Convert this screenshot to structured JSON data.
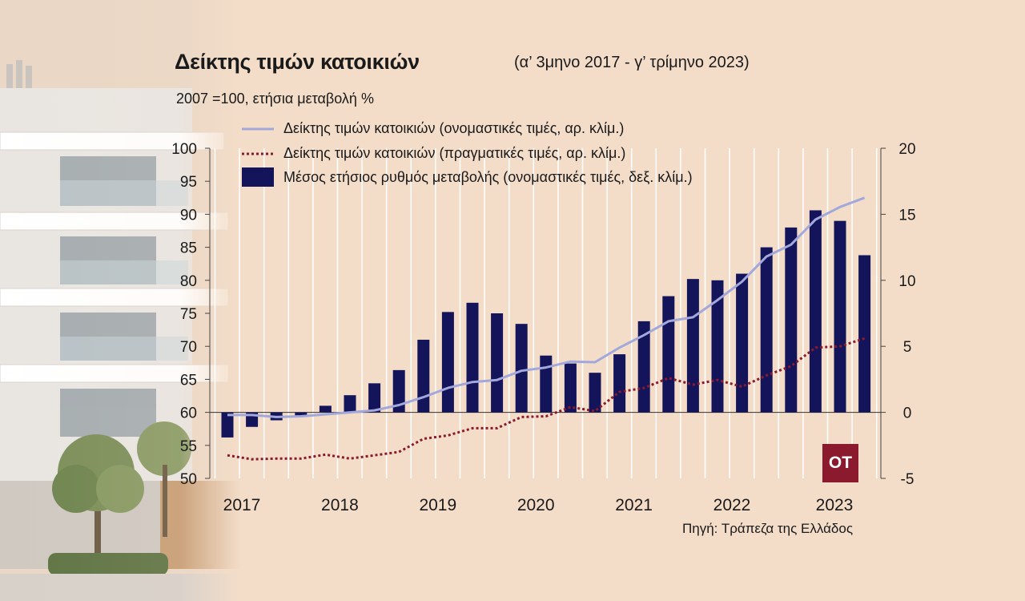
{
  "title": "Δείκτης τιμών κατοικιών",
  "subtitle": "(α’ 3μηνο 2017 - γ’ τρίμηνο 2023)",
  "unit_note": "2007 =100, ετήσια μεταβολή %",
  "source": "Πηγή: Τράπεζα της Ελλάδος",
  "logo_text": "ΟΤ",
  "colors": {
    "background": "#f3ddc9",
    "bars": "#14145a",
    "nominal_line": "#a3a8dc",
    "real_line": "#8b1a2f",
    "logo": "#8b1a2f"
  },
  "legend": [
    {
      "label": "Δείκτης τιμών κατοικιών (ονομαστικές τιμές, αρ. κλίμ.)",
      "style": "solid-line"
    },
    {
      "label": "Δείκτης τιμών κατοικιών (πραγματικές τιμές, αρ. κλίμ.)",
      "style": "dotted-line"
    },
    {
      "label": "Μέσος ετήσιος ρυθμός μεταβολής (ονομαστικές τιμές, δεξ. κλίμ.)",
      "style": "bar"
    }
  ],
  "chart_data": {
    "type": "bar",
    "x_tick_labels": [
      "2017",
      "2018",
      "2019",
      "2020",
      "2021",
      "2022",
      "2023"
    ],
    "left_axis": {
      "ylim": [
        50,
        100
      ],
      "ticks": [
        50,
        55,
        60,
        65,
        70,
        75,
        80,
        85,
        90,
        95,
        100
      ]
    },
    "right_axis": {
      "ylim": [
        -5,
        20
      ],
      "ticks": [
        -5,
        0,
        5,
        10,
        15,
        20
      ]
    },
    "grid": "vertical",
    "legend_position": "top-left",
    "series": [
      {
        "name": "Μέσος ετήσιος ρυθμός μεταβολής (ονομαστικές τιμές, δεξ. κλίμ.)",
        "kind": "bar",
        "axis": "right",
        "values": [
          -1.9,
          -1.1,
          -0.6,
          -0.3,
          0.5,
          1.3,
          2.2,
          3.2,
          5.5,
          7.6,
          8.3,
          7.5,
          6.7,
          4.3,
          3.7,
          3.0,
          4.4,
          6.9,
          8.8,
          10.1,
          10.0,
          10.5,
          12.5,
          14.0,
          15.3,
          14.5,
          11.9
        ]
      },
      {
        "name": "Δείκτης τιμών κατοικιών (ονομαστικές τιμές, αρ. κλίμ.)",
        "kind": "line",
        "axis": "left",
        "values": [
          59.6,
          59.6,
          59.3,
          59.4,
          59.7,
          60.0,
          60.3,
          61.1,
          62.3,
          63.7,
          64.6,
          64.9,
          66.3,
          66.8,
          67.7,
          67.6,
          69.8,
          71.7,
          73.8,
          74.4,
          77.0,
          79.8,
          83.6,
          85.4,
          89.2,
          91.1,
          92.5
        ]
      },
      {
        "name": "Δείκτης τιμών κατοικιών (πραγματικές τιμές, αρ. κλίμ.)",
        "kind": "line",
        "axis": "left",
        "values": [
          53.5,
          52.9,
          53.0,
          53.0,
          53.6,
          53.0,
          53.5,
          54.0,
          56.0,
          56.5,
          57.6,
          57.6,
          59.3,
          59.4,
          60.8,
          60.2,
          63.1,
          63.7,
          65.2,
          64.2,
          64.9,
          63.9,
          65.6,
          67.0,
          69.8,
          70.0,
          71.2
        ]
      }
    ]
  }
}
